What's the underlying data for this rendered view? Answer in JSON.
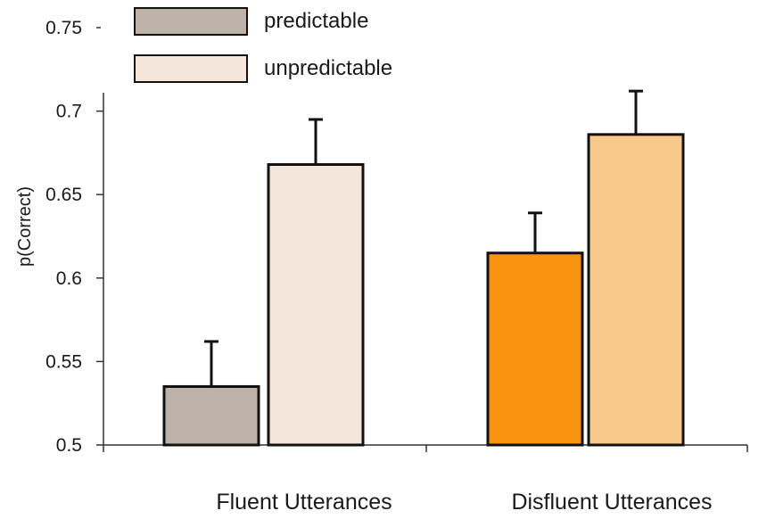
{
  "chart_data": {
    "type": "bar",
    "ylabel": "p(Correct)",
    "ylim": [
      0.5,
      0.75
    ],
    "yticks": [
      "0.5",
      "0.55",
      "0.6",
      "0.65",
      "0.7",
      "0.75"
    ],
    "grid": false,
    "legend_position": "top-left",
    "legend": [
      {
        "name": "predictable",
        "color": "#bcb2a8"
      },
      {
        "name": "unpredictable",
        "color": "#f4e6da"
      }
    ],
    "categories": [
      {
        "label": "Fluent Utterances",
        "bars": [
          {
            "condition": "predictable",
            "value": 0.535,
            "error": 0.027,
            "color": "#bcb2a8"
          },
          {
            "condition": "unpredictable",
            "value": 0.668,
            "error": 0.027,
            "color": "#f4e6da"
          }
        ]
      },
      {
        "label": "Disfluent Utterances",
        "bars": [
          {
            "condition": "predictable",
            "value": 0.615,
            "error": 0.024,
            "color": "#f7930e"
          },
          {
            "condition": "unpredictable",
            "value": 0.686,
            "error": 0.026,
            "color": "#f8c88a"
          }
        ]
      }
    ]
  }
}
